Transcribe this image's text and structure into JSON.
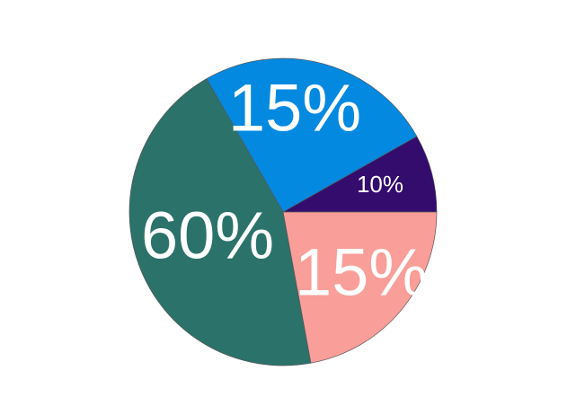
{
  "chart_data": {
    "type": "pie",
    "start_angle_deg": 0,
    "direction": "counterclockwise",
    "slices": [
      {
        "label": "10%",
        "value": 8.2,
        "color": "#340c6e"
      },
      {
        "label": "15%",
        "value": 25.1,
        "color": "#0389e0"
      },
      {
        "label": "60%",
        "value": 44.6,
        "color": "#2b726b"
      },
      {
        "label": "15%",
        "value": 22.1,
        "color": "#f99e99"
      }
    ],
    "edge_color": "#555555",
    "legend": "none"
  }
}
